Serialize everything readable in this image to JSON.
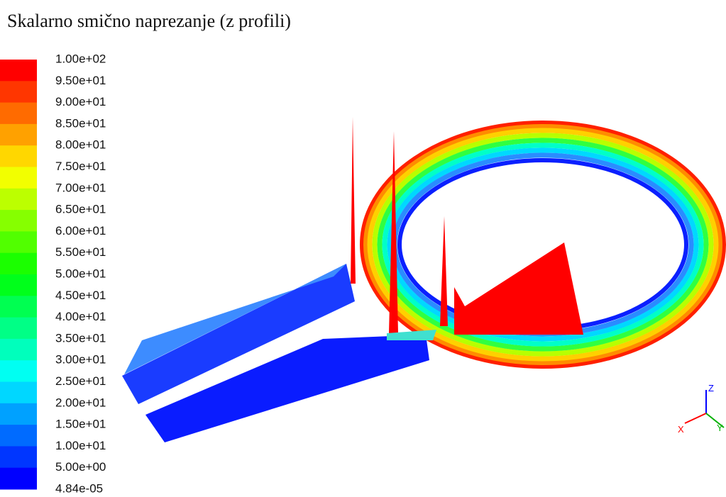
{
  "title": "Skalarno smično naprezanje (z profili)",
  "legend": {
    "labels": [
      "1.00e+02",
      "9.50e+01",
      "9.00e+01",
      "8.50e+01",
      "8.00e+01",
      "7.50e+01",
      "7.00e+01",
      "6.50e+01",
      "6.00e+01",
      "5.50e+01",
      "5.00e+01",
      "4.50e+01",
      "4.00e+01",
      "3.50e+01",
      "3.00e+01",
      "2.50e+01",
      "2.00e+01",
      "1.50e+01",
      "1.00e+01",
      "5.00e+00",
      "4.84e-05"
    ]
  },
  "axes": {
    "x": "X",
    "y": "Y",
    "z": "Z"
  }
}
